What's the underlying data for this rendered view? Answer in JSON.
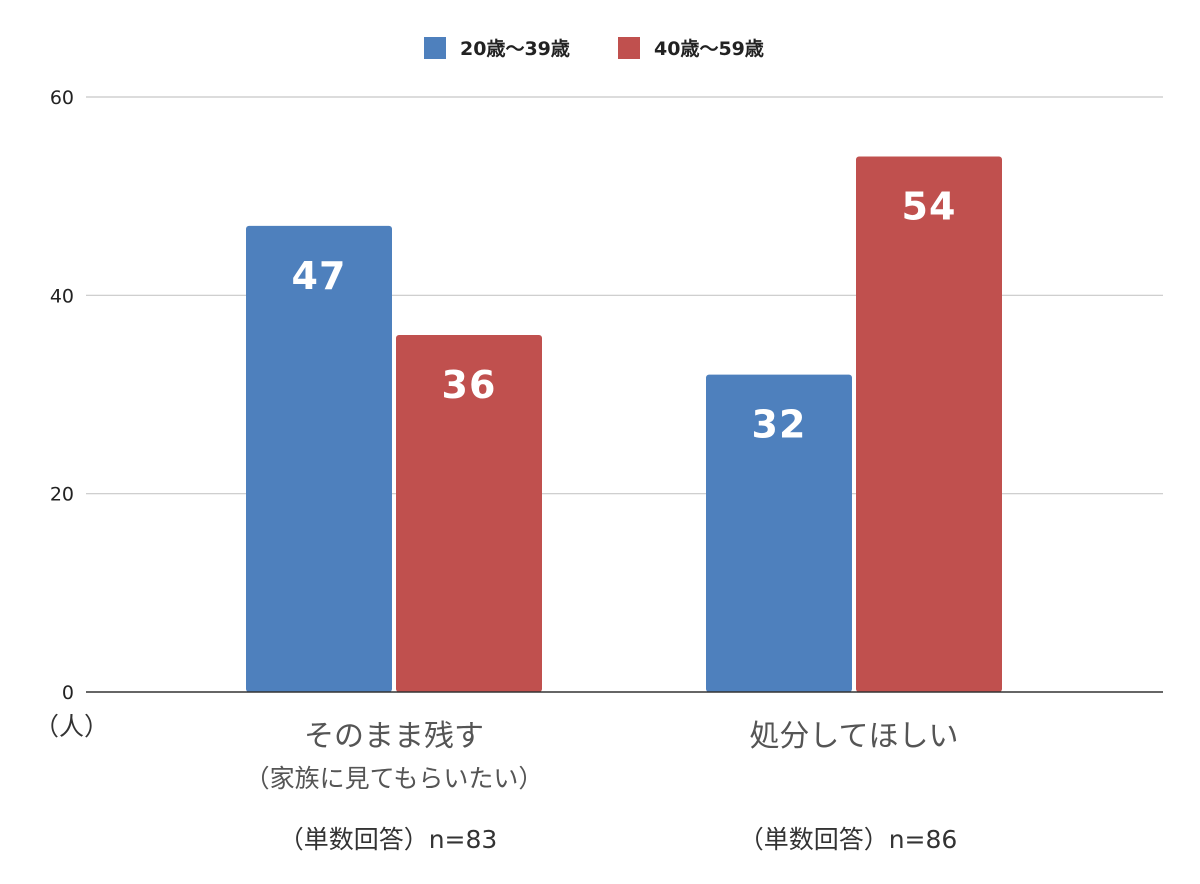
{
  "chart_data": {
    "type": "bar",
    "categories": [
      {
        "label": "そのまま残す",
        "sublabel": "（家族に見てもらいたい）",
        "note": "（単数回答）n=83"
      },
      {
        "label": "処分してほしい",
        "sublabel": "",
        "note": "（単数回答）n=86"
      }
    ],
    "series": [
      {
        "name": "20歳〜39歳",
        "color": "#4e80bd",
        "values": [
          47,
          32
        ]
      },
      {
        "name": "40歳〜59歳",
        "color": "#c0504e",
        "values": [
          36,
          54
        ]
      }
    ],
    "ylim": [
      0,
      60
    ],
    "yticks": [
      0,
      20,
      40,
      60
    ],
    "yunit": "（人）",
    "grid": true,
    "legend": "top-center",
    "colors": {
      "grid": "#c8c8c8",
      "axis": "#333333"
    }
  }
}
